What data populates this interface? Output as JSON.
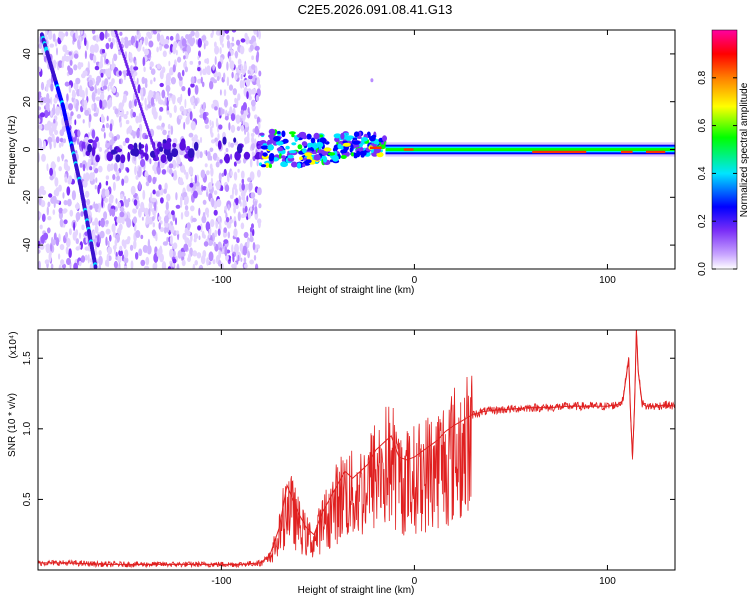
{
  "title": "C2E5.2026.091.08.41.G13",
  "chart_data": [
    {
      "type": "heatmap",
      "xlabel": "Height of straight line (km)",
      "ylabel": "Frequency (Hz)",
      "xlim": [
        -195,
        135
      ],
      "ylim": [
        -50,
        50
      ],
      "x_ticks": [
        -100,
        0,
        100
      ],
      "x_tick_labels": [
        "-100",
        "0",
        "100"
      ],
      "y_ticks": [
        -40,
        -20,
        0,
        20,
        40
      ],
      "y_tick_labels": [
        "-40",
        "-20",
        "0",
        "20",
        "40"
      ],
      "colorbar": {
        "label": "Normalized spectral amplitude",
        "range": [
          0,
          1
        ],
        "ticks": [
          0.0,
          0.2,
          0.4,
          0.6,
          0.8
        ],
        "tick_labels": [
          "0.0",
          "0.2",
          "0.4",
          "0.6",
          "0.8"
        ],
        "colors": [
          "#ffffff",
          "#7b2ff7",
          "#0000ff",
          "#00e5ff",
          "#00ff00",
          "#ffff00",
          "#ff7f00",
          "#ff0000",
          "#ff00a0"
        ]
      },
      "noise_region_x": [
        -195,
        -80
      ],
      "diagonal_trace": [
        [
          -193,
          48
        ],
        [
          -182,
          18
        ],
        [
          -173,
          -15
        ],
        [
          -165,
          -50
        ]
      ],
      "carrier_line": {
        "x_range": [
          -80,
          135
        ],
        "y": 0
      }
    },
    {
      "type": "line",
      "xlabel": "Height of straight line (km)",
      "ylabel": "SNR (10 * v/v)",
      "y_scale_label": "(x10⁴)",
      "xlim": [
        -195,
        135
      ],
      "ylim": [
        0,
        1.7
      ],
      "x_ticks": [
        -100,
        0,
        100
      ],
      "x_tick_labels": [
        "-100",
        "0",
        "100"
      ],
      "y_ticks": [
        0.5,
        1.0,
        1.5
      ],
      "y_tick_labels": [
        "0.5",
        "1.0",
        "1.5"
      ],
      "series_color": "#e02020",
      "series": [
        {
          "x": [
            -195,
            -180,
            -160,
            -140,
            -120,
            -100,
            -90,
            -80,
            -75,
            -70,
            -66,
            -63,
            -60,
            -56,
            -52,
            -48,
            -44,
            -40,
            -36,
            -32,
            -28,
            -24,
            -20,
            -16,
            -12,
            -8,
            -4,
            0,
            4,
            8,
            12,
            16,
            20,
            25,
            30,
            35,
            40,
            50,
            60,
            70,
            80,
            90,
            100,
            105,
            108,
            111,
            112,
            113,
            114,
            115,
            116,
            118,
            120,
            125,
            130,
            135
          ],
          "y": [
            0.05,
            0.05,
            0.04,
            0.04,
            0.04,
            0.04,
            0.04,
            0.05,
            0.1,
            0.3,
            0.6,
            0.5,
            0.4,
            0.3,
            0.25,
            0.4,
            0.5,
            0.6,
            0.7,
            0.65,
            0.7,
            0.75,
            0.85,
            0.9,
            0.95,
            0.8,
            0.78,
            0.8,
            0.84,
            0.88,
            0.92,
            0.98,
            1.02,
            1.06,
            1.1,
            1.12,
            1.13,
            1.14,
            1.15,
            1.15,
            1.16,
            1.16,
            1.16,
            1.17,
            1.2,
            1.5,
            1.1,
            0.8,
            1.15,
            1.7,
            1.4,
            1.18,
            1.16,
            1.16,
            1.17,
            1.16
          ]
        }
      ]
    }
  ]
}
